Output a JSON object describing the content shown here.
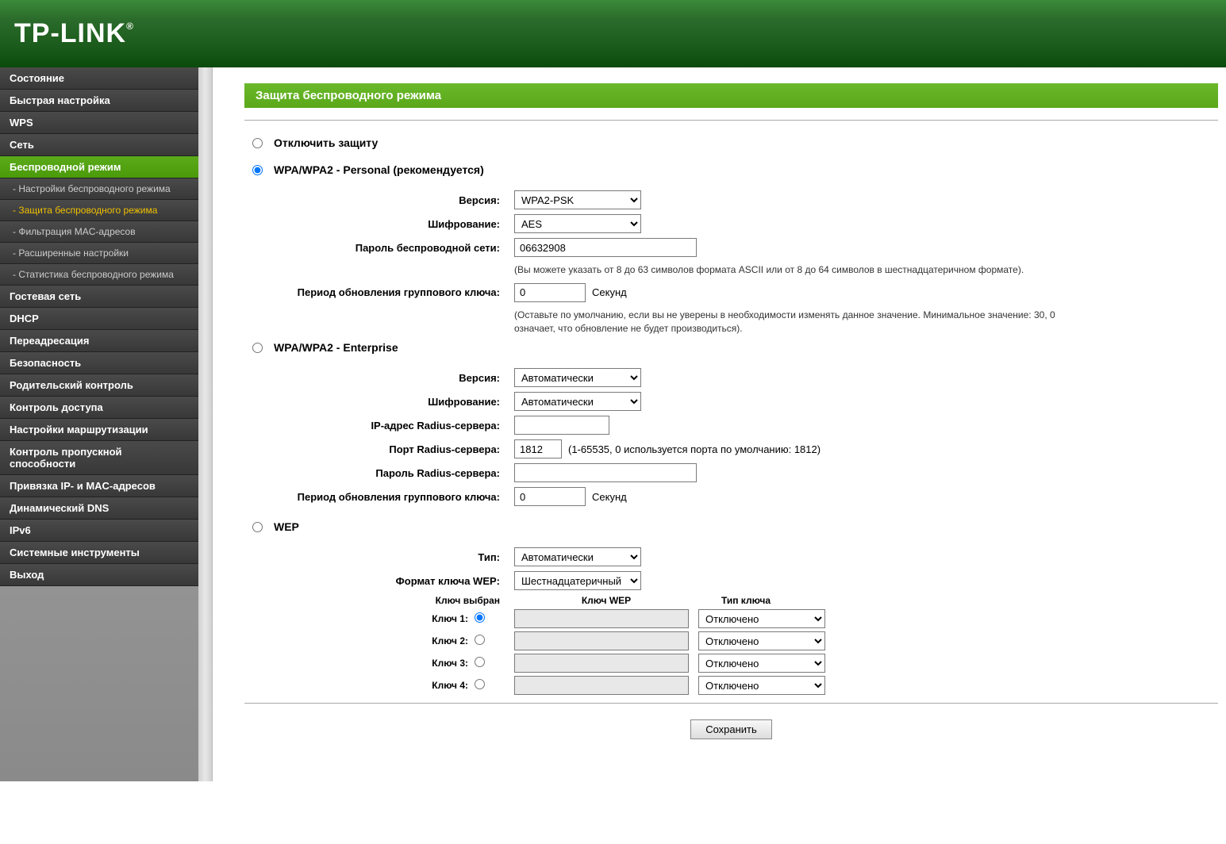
{
  "brand": "TP-LINK",
  "sidebar": {
    "items": [
      {
        "label": "Состояние",
        "type": "main"
      },
      {
        "label": "Быстрая настройка",
        "type": "main"
      },
      {
        "label": "WPS",
        "type": "main"
      },
      {
        "label": "Сеть",
        "type": "main"
      },
      {
        "label": "Беспроводной режим",
        "type": "main",
        "active": true
      },
      {
        "label": "- Настройки беспроводного режима",
        "type": "sub"
      },
      {
        "label": "- Защита беспроводного режима",
        "type": "sub",
        "active": true
      },
      {
        "label": "- Фильтрация MAC-адресов",
        "type": "sub"
      },
      {
        "label": "- Расширенные настройки",
        "type": "sub"
      },
      {
        "label": "- Статистика беспроводного режима",
        "type": "sub"
      },
      {
        "label": "Гостевая сеть",
        "type": "main"
      },
      {
        "label": "DHCP",
        "type": "main"
      },
      {
        "label": "Переадресация",
        "type": "main"
      },
      {
        "label": "Безопасность",
        "type": "main"
      },
      {
        "label": "Родительский контроль",
        "type": "main"
      },
      {
        "label": "Контроль доступа",
        "type": "main"
      },
      {
        "label": "Настройки маршрутизации",
        "type": "main"
      },
      {
        "label": "Контроль пропускной способности",
        "type": "main"
      },
      {
        "label": "Привязка IP- и MAC-адресов",
        "type": "main"
      },
      {
        "label": "Динамический DNS",
        "type": "main"
      },
      {
        "label": "IPv6",
        "type": "main"
      },
      {
        "label": "Системные инструменты",
        "type": "main"
      },
      {
        "label": "Выход",
        "type": "main"
      }
    ]
  },
  "page_title": "Защита беспроводного режима",
  "security_mode_selected": "wpa_personal",
  "modes": {
    "disable": {
      "label": "Отключить защиту"
    },
    "wpa_personal": {
      "label": "WPA/WPA2 - Personal (рекомендуется)",
      "version_label": "Версия:",
      "version_value": "WPA2-PSK",
      "encryption_label": "Шифрование:",
      "encryption_value": "AES",
      "password_label": "Пароль беспроводной сети:",
      "password_value": "06632908",
      "password_hint": "(Вы можете указать от 8 до 63 символов формата ASCII или от 8 до 64 символов в шестнадцатеричном формате).",
      "groupkey_label": "Период обновления группового ключа:",
      "groupkey_value": "0",
      "groupkey_suffix": "Секунд",
      "groupkey_hint": "(Оставьте по умолчанию, если вы не уверены в необходимости изменять данное значение. Минимальное значение: 30, 0 означает, что обновление не будет производиться)."
    },
    "wpa_enterprise": {
      "label": "WPA/WPA2 - Enterprise",
      "version_label": "Версия:",
      "version_value": "Автоматически",
      "encryption_label": "Шифрование:",
      "encryption_value": "Автоматически",
      "radius_ip_label": "IP-адрес Radius-сервера:",
      "radius_ip_value": "",
      "radius_port_label": "Порт Radius-сервера:",
      "radius_port_value": "1812",
      "radius_port_hint": "(1-65535, 0 используется порта по умолчанию: 1812)",
      "radius_pwd_label": "Пароль Radius-сервера:",
      "radius_pwd_value": "",
      "groupkey_label": "Период обновления группового ключа:",
      "groupkey_value": "0",
      "groupkey_suffix": "Секунд"
    },
    "wep": {
      "label": "WEP",
      "type_label": "Тип:",
      "type_value": "Автоматически",
      "format_label": "Формат ключа WEP:",
      "format_value": "Шестнадцатеричный",
      "header_selected": "Ключ выбран",
      "header_key": "Ключ WEP",
      "header_type": "Тип ключа",
      "keys": [
        {
          "label": "Ключ 1:",
          "selected": true,
          "value": "",
          "type": "Отключено"
        },
        {
          "label": "Ключ 2:",
          "selected": false,
          "value": "",
          "type": "Отключено"
        },
        {
          "label": "Ключ 3:",
          "selected": false,
          "value": "",
          "type": "Отключено"
        },
        {
          "label": "Ключ 4:",
          "selected": false,
          "value": "",
          "type": "Отключено"
        }
      ]
    }
  },
  "save_button": "Сохранить",
  "colors": {
    "header_green_top": "#3a8a3a",
    "header_green_bottom": "#0a4a0a",
    "sidebar_item": "#4a4a4a",
    "sidebar_active": "#5aaa1a",
    "sidebar_sub_active_text": "#f0c000",
    "page_title_bg": "#5aa81a"
  }
}
